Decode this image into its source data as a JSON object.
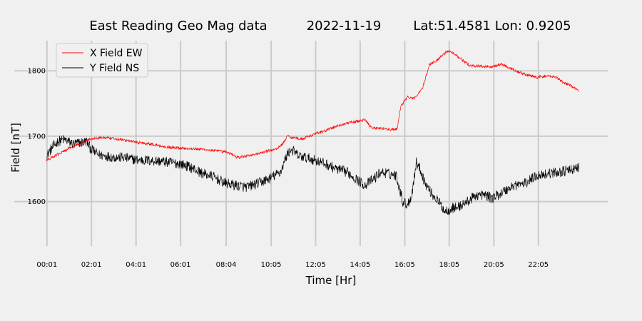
{
  "title": {
    "station": "East Reading Geo Mag data",
    "date": "2022-11-19",
    "coords": "Lat:51.4581  Lon: 0.9205"
  },
  "chart_data": {
    "type": "line",
    "xlabel": "Time  [Hr]",
    "ylabel": "Field  [nT]",
    "x_domain_hours": [
      -1.45,
      25.2
    ],
    "ylim": [
      1532,
      1846
    ],
    "x_tick_labels": [
      "00:01",
      "02:01",
      "04:01",
      "06:01",
      "08:04",
      "10:05",
      "12:05",
      "14:05",
      "16:05",
      "18:05",
      "20:05",
      "22:05"
    ],
    "x_tick_hours": [
      0.0167,
      2.0167,
      4.0167,
      6.0167,
      8.0667,
      10.0833,
      12.0833,
      14.0833,
      16.0833,
      18.0833,
      20.0833,
      22.0833
    ],
    "y_ticks": [
      1600,
      1700,
      1800
    ],
    "grid": true,
    "legend": "top-left",
    "series": [
      {
        "name": "X Field EW",
        "color": "#ff0000",
        "x": [
          0,
          0.5,
          1.0,
          1.5,
          2.0,
          2.5,
          3.0,
          3.5,
          4.0,
          4.5,
          5.0,
          5.5,
          6.0,
          6.5,
          7.0,
          7.5,
          8.0,
          8.3,
          8.6,
          9.0,
          9.5,
          10.0,
          10.3,
          10.6,
          10.8,
          11.2,
          11.5,
          12.0,
          12.5,
          13.0,
          13.5,
          14.0,
          14.3,
          14.6,
          15.0,
          15.5,
          15.75,
          15.9,
          16.2,
          16.5,
          16.9,
          17.2,
          17.5,
          17.8,
          18.0,
          18.3,
          18.6,
          19.0,
          19.5,
          20.0,
          20.4,
          20.8,
          21.2,
          21.6,
          22.0,
          22.5,
          22.9,
          23.2,
          23.5,
          23.9
        ],
        "y": [
          1663,
          1672,
          1681,
          1688,
          1696,
          1698,
          1696,
          1694,
          1691,
          1689,
          1686,
          1683,
          1682,
          1681,
          1680,
          1678,
          1676,
          1673,
          1667,
          1670,
          1673,
          1678,
          1680,
          1688,
          1700,
          1697,
          1696,
          1703,
          1708,
          1715,
          1720,
          1723,
          1725,
          1713,
          1712,
          1710,
          1711,
          1745,
          1760,
          1757,
          1775,
          1810,
          1815,
          1825,
          1830,
          1827,
          1818,
          1808,
          1807,
          1806,
          1810,
          1805,
          1798,
          1793,
          1790,
          1792,
          1790,
          1782,
          1778,
          1769
        ]
      },
      {
        "name": "Y Field NS",
        "color": "#000000",
        "x": [
          0,
          0.2,
          0.5,
          0.8,
          1.2,
          1.5,
          1.8,
          2.0,
          2.3,
          2.6,
          3.0,
          3.5,
          4.0,
          4.5,
          5.0,
          5.5,
          6.0,
          6.5,
          7.0,
          7.5,
          8.0,
          8.5,
          9.0,
          9.5,
          10.0,
          10.5,
          10.8,
          11.0,
          11.3,
          12.0,
          12.5,
          13.0,
          13.5,
          14.0,
          14.3,
          14.7,
          15.0,
          15.3,
          15.7,
          16.0,
          16.2,
          16.4,
          16.6,
          16.8,
          17.0,
          17.3,
          17.6,
          17.9,
          18.2,
          18.5,
          18.9,
          19.3,
          19.7,
          20.0,
          20.5,
          21.0,
          21.5,
          22.0,
          22.5,
          23.0,
          23.5,
          23.9
        ],
        "y": [
          1670,
          1680,
          1692,
          1695,
          1688,
          1690,
          1692,
          1680,
          1672,
          1670,
          1668,
          1667,
          1664,
          1663,
          1662,
          1660,
          1658,
          1652,
          1643,
          1638,
          1628,
          1625,
          1622,
          1628,
          1635,
          1645,
          1672,
          1680,
          1670,
          1664,
          1658,
          1650,
          1645,
          1632,
          1625,
          1635,
          1645,
          1643,
          1640,
          1600,
          1595,
          1610,
          1660,
          1648,
          1628,
          1612,
          1600,
          1585,
          1590,
          1592,
          1600,
          1610,
          1610,
          1605,
          1615,
          1625,
          1628,
          1640,
          1643,
          1645,
          1648,
          1652
        ]
      }
    ]
  }
}
